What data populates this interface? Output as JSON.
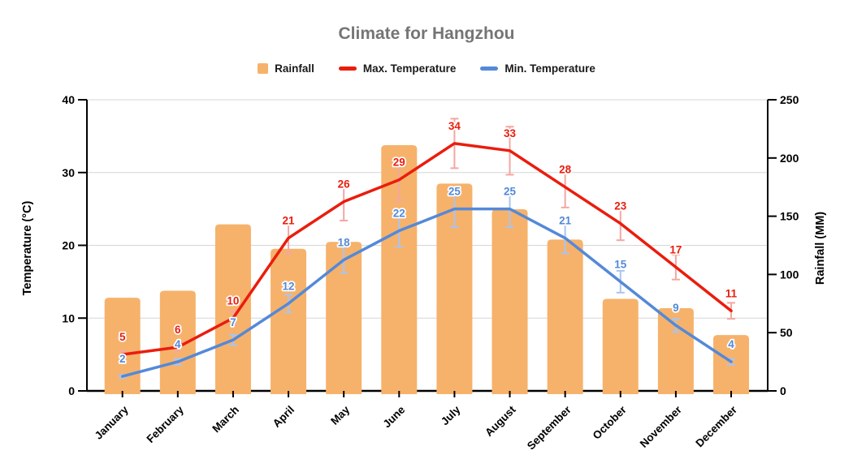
{
  "title": "Climate for Hangzhou",
  "legend": {
    "items": [
      {
        "label": "Rainfall",
        "swatch": "square",
        "color": "#F6B26B"
      },
      {
        "label": "Max. Temperature",
        "swatch": "line",
        "color": "#EA1D0D"
      },
      {
        "label": "Min. Temperature",
        "swatch": "line",
        "color": "#5489D8"
      }
    ]
  },
  "chart_data": {
    "type": "combo (bar + line)",
    "categories": [
      "January",
      "February",
      "March",
      "April",
      "May",
      "June",
      "July",
      "August",
      "September",
      "October",
      "November",
      "December"
    ],
    "series": [
      {
        "name": "Rainfall",
        "type": "bar",
        "axis": "right",
        "color": "#F6B26B",
        "values": [
          80,
          86,
          143,
          122,
          128,
          211,
          178,
          156,
          130,
          79,
          71,
          48
        ]
      },
      {
        "name": "Max. Temperature",
        "type": "line",
        "axis": "left",
        "color": "#EA1D0D",
        "error_bar_color": "#F4A7A0",
        "error_percent": 10,
        "labels_shown": true,
        "values": [
          5,
          6,
          10,
          21,
          26,
          29,
          34,
          33,
          28,
          23,
          17,
          11
        ]
      },
      {
        "name": "Min. Temperature",
        "type": "line",
        "axis": "left",
        "color": "#5489D8",
        "error_bar_color": "#AAC4EF",
        "error_percent": 10,
        "labels_shown": true,
        "values": [
          2,
          4,
          7,
          12,
          18,
          22,
          25,
          25,
          21,
          15,
          9,
          4
        ]
      }
    ],
    "left_axis": {
      "title": "Temperature (°C)",
      "min": 0,
      "max": 40,
      "ticks": [
        0,
        10,
        20,
        30,
        40
      ]
    },
    "right_axis": {
      "title": "Rainfall (MM)",
      "min": 0,
      "max": 250,
      "ticks": [
        0,
        50,
        100,
        150,
        200,
        250
      ]
    },
    "grid": {
      "show": true,
      "color": "#D6D6D6",
      "follows": "left_axis"
    },
    "legend_position": "top"
  }
}
